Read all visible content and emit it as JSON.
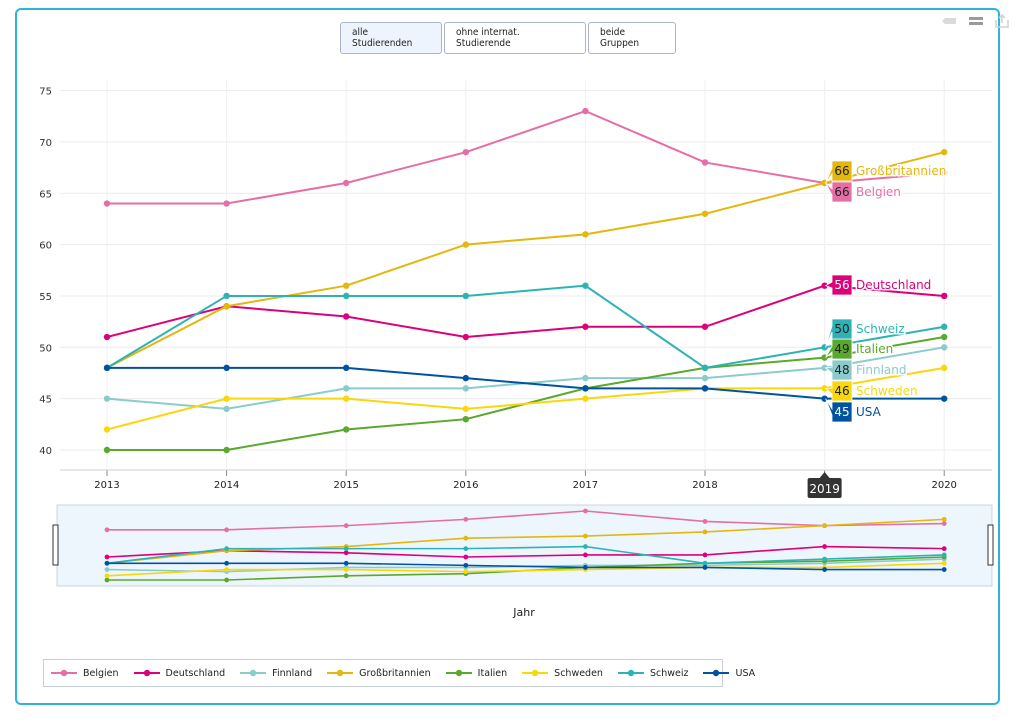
{
  "toolbar": {
    "buttons": [
      "alle Studierenden",
      "ohne internat. Studierende",
      "beide Gruppen"
    ],
    "active_index": 0,
    "icons": [
      "tag-icon",
      "layers-icon",
      "export-icon"
    ]
  },
  "colors": {
    "Belgien": "#e56ea6",
    "Deutschland": "#dc007a",
    "Finnland": "#8ccbcc",
    "Großbritannien": "#e3b70c",
    "Italien": "#5aa82c",
    "Schweden": "#f9d70b",
    "Schweiz": "#2db3b5",
    "USA": "#0053a0"
  },
  "chart_data": {
    "type": "line",
    "x": [
      2013,
      2014,
      2015,
      2016,
      2017,
      2018,
      2019,
      2020
    ],
    "xlabel": "Jahr",
    "ylabel": "",
    "ylim": [
      38,
      75
    ],
    "yticks": [
      40,
      45,
      50,
      55,
      60,
      65,
      70,
      75
    ],
    "grid": true,
    "legend_position": "bottom-left",
    "highlight_x": "2019",
    "series": [
      {
        "name": "Belgien",
        "values": [
          64,
          64,
          66,
          69,
          73,
          68,
          66,
          67
        ]
      },
      {
        "name": "Deutschland",
        "values": [
          51,
          54,
          53,
          51,
          52,
          52,
          56,
          55
        ]
      },
      {
        "name": "Finnland",
        "values": [
          45,
          44,
          46,
          46,
          47,
          47,
          48,
          50
        ]
      },
      {
        "name": "Großbritannien",
        "values": [
          48,
          54,
          56,
          60,
          61,
          63,
          66,
          69
        ]
      },
      {
        "name": "Italien",
        "values": [
          40,
          40,
          42,
          43,
          46,
          48,
          49,
          51
        ]
      },
      {
        "name": "Schweden",
        "values": [
          42,
          45,
          45,
          44,
          45,
          46,
          46,
          48
        ]
      },
      {
        "name": "Schweiz",
        "values": [
          48,
          55,
          55,
          55,
          56,
          48,
          50,
          52
        ]
      },
      {
        "name": "USA",
        "values": [
          48,
          48,
          48,
          47,
          46,
          46,
          45,
          45
        ]
      }
    ]
  }
}
